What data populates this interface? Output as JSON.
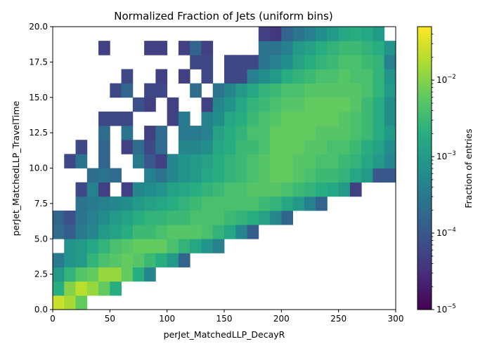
{
  "chart_data": {
    "type": "heatmap",
    "title": "Normalized Fraction of Jets (uniform bins)",
    "xlabel": "perJet_MatchedLLP_DecayR",
    "ylabel": "perJet_MatchedLLP_TravelTime",
    "xlim": [
      0,
      300
    ],
    "ylim": [
      0,
      20
    ],
    "x_bin_width": 10,
    "y_bin_width": 1,
    "x_ticks": [
      "0",
      "50",
      "100",
      "150",
      "200",
      "250",
      "300"
    ],
    "y_ticks": [
      "0.0",
      "2.5",
      "5.0",
      "7.5",
      "10.0",
      "12.5",
      "15.0",
      "17.5",
      "20.0"
    ],
    "colorbar": {
      "label": "Fraction of entries",
      "scale": "log",
      "range": [
        1e-05,
        0.05
      ],
      "ticks": [
        "10^-5",
        "10^-4",
        "10^-3",
        "10^-2"
      ],
      "colormap": "viridis"
    },
    "log10_rows": [
      [
        -1.6,
        -1.8,
        -2.2,
        null,
        null,
        null,
        null,
        null,
        null,
        null,
        null,
        null,
        null,
        null,
        null,
        null,
        null,
        null,
        null,
        null,
        null,
        null,
        null,
        null,
        null,
        null,
        null,
        null,
        null,
        null
      ],
      [
        -2.7,
        -2.0,
        -1.7,
        -1.9,
        -2.2,
        -2.7,
        null,
        null,
        null,
        null,
        null,
        null,
        null,
        null,
        null,
        null,
        null,
        null,
        null,
        null,
        null,
        null,
        null,
        null,
        null,
        null,
        null,
        null,
        null,
        null
      ],
      [
        -3.0,
        -2.6,
        -2.3,
        -2.2,
        -1.9,
        -1.9,
        -2.2,
        -2.7,
        -3.3,
        null,
        null,
        null,
        null,
        null,
        null,
        null,
        null,
        null,
        null,
        null,
        null,
        null,
        null,
        null,
        null,
        null,
        null,
        null,
        null,
        null
      ],
      [
        -3.5,
        -3.1,
        -3.0,
        -2.6,
        -2.4,
        -2.3,
        -2.2,
        -2.3,
        -2.5,
        -2.7,
        -3.0,
        -3.8,
        null,
        null,
        null,
        null,
        null,
        null,
        null,
        null,
        null,
        null,
        null,
        null,
        null,
        null,
        null,
        null,
        null,
        null
      ],
      [
        null,
        -3.1,
        -3.0,
        -2.8,
        -2.6,
        -2.4,
        -2.3,
        -2.2,
        -2.2,
        -2.2,
        -2.4,
        -2.6,
        -2.8,
        -3.1,
        -3.4,
        null,
        null,
        null,
        null,
        null,
        null,
        null,
        null,
        null,
        null,
        null,
        null,
        null,
        null,
        null
      ],
      [
        -3.7,
        -3.9,
        -3.5,
        -3.3,
        -3.0,
        -2.9,
        -2.7,
        -2.5,
        -2.5,
        -2.4,
        -2.3,
        -2.3,
        -2.3,
        -2.4,
        -2.6,
        -2.8,
        -3.3,
        -3.9,
        null,
        null,
        null,
        null,
        null,
        null,
        null,
        null,
        null,
        null,
        null,
        null
      ],
      [
        -3.8,
        -4.1,
        -3.6,
        -3.4,
        -3.2,
        -3.0,
        -2.9,
        -2.7,
        -2.6,
        -2.6,
        -2.5,
        -2.5,
        -2.4,
        -2.4,
        -2.4,
        -2.5,
        -2.6,
        -2.7,
        -2.9,
        -3.3,
        -3.8,
        null,
        null,
        null,
        null,
        null,
        null,
        null,
        null,
        null
      ],
      [
        null,
        null,
        -3.6,
        -3.5,
        -3.4,
        -3.3,
        -3.2,
        -3.0,
        -2.9,
        -2.8,
        -2.7,
        -2.6,
        -2.5,
        -2.4,
        -2.4,
        -2.4,
        -2.4,
        -2.4,
        -2.5,
        -2.6,
        -2.8,
        -3.0,
        -3.4,
        -3.8,
        null,
        null,
        null,
        null,
        null,
        null
      ],
      [
        null,
        null,
        -4.2,
        -3.4,
        -4.3,
        null,
        -4.3,
        -3.3,
        -3.2,
        -3.1,
        -2.9,
        -2.8,
        -2.7,
        -2.6,
        -2.5,
        -2.4,
        -2.4,
        -2.3,
        -2.3,
        -2.3,
        -2.4,
        -2.5,
        -2.6,
        -2.7,
        -2.8,
        -3.0,
        -4.3,
        null,
        null,
        null
      ],
      [
        null,
        null,
        null,
        -3.7,
        -3.6,
        -3.7,
        null,
        null,
        -3.4,
        -3.6,
        -3.3,
        -3.1,
        -3.0,
        -2.8,
        -2.7,
        -2.6,
        -2.5,
        -2.4,
        -2.3,
        -2.2,
        -2.2,
        -2.3,
        -2.4,
        -2.5,
        -2.5,
        -2.6,
        -2.8,
        -3.0,
        -4.0,
        -4.0
      ],
      [
        null,
        -4.2,
        -3.6,
        null,
        -3.8,
        null,
        null,
        -3.5,
        -4.0,
        -4.3,
        -3.3,
        -3.1,
        -3.0,
        -2.9,
        -2.7,
        -2.6,
        -2.5,
        -2.4,
        -2.3,
        -2.2,
        -2.2,
        -2.3,
        -2.3,
        -2.4,
        -2.4,
        -2.5,
        -2.6,
        -2.8,
        -3.0,
        -3.3
      ],
      [
        null,
        null,
        -4.2,
        null,
        -3.8,
        null,
        -4.3,
        -3.7,
        -4.2,
        -3.7,
        null,
        -3.3,
        -3.3,
        -3.2,
        -2.8,
        -2.7,
        -2.5,
        -2.5,
        -2.4,
        -2.2,
        -2.2,
        -2.2,
        -2.3,
        -2.3,
        -2.4,
        -2.4,
        -2.5,
        -2.7,
        -2.9,
        -3.2
      ],
      [
        null,
        null,
        null,
        null,
        -3.7,
        null,
        -3.6,
        null,
        -4.3,
        -3.7,
        null,
        -3.5,
        -3.5,
        -3.4,
        -2.9,
        -2.7,
        -2.6,
        -2.4,
        -2.4,
        -2.2,
        -2.2,
        -2.2,
        -2.2,
        -2.3,
        -2.3,
        -2.3,
        -2.4,
        -2.5,
        -2.7,
        -3.0
      ],
      [
        null,
        null,
        null,
        null,
        -4.2,
        -4.2,
        -4.2,
        null,
        null,
        null,
        -4.3,
        -3.5,
        null,
        -3.4,
        -3.2,
        -2.8,
        -2.7,
        -2.5,
        -2.4,
        -2.3,
        -2.2,
        -2.2,
        -2.2,
        -2.2,
        -2.2,
        -2.3,
        -2.4,
        -2.5,
        -2.7,
        -3.2
      ],
      [
        null,
        null,
        null,
        null,
        null,
        null,
        null,
        -4.1,
        -4.3,
        null,
        -4.3,
        null,
        null,
        -4.3,
        -3.3,
        -3.1,
        -2.8,
        -2.6,
        -2.5,
        -2.4,
        -2.3,
        -2.3,
        -2.2,
        -2.2,
        -2.2,
        -2.2,
        -2.3,
        -2.5,
        -2.7,
        -3.2
      ],
      [
        null,
        null,
        null,
        null,
        null,
        -4.2,
        -3.8,
        null,
        -4.2,
        -4.2,
        null,
        null,
        -3.7,
        null,
        -3.6,
        -3.3,
        -3.0,
        -2.8,
        -2.6,
        -2.5,
        -2.4,
        -2.4,
        -2.3,
        -2.3,
        -2.3,
        -2.3,
        -2.3,
        -2.4,
        -2.6,
        -3.0
      ],
      [
        null,
        null,
        null,
        null,
        null,
        null,
        -4.2,
        null,
        null,
        -4.3,
        null,
        -4.3,
        null,
        -4.2,
        null,
        -4.2,
        -4.2,
        -3.4,
        -3.2,
        -3.0,
        -2.7,
        -2.6,
        -2.5,
        -2.4,
        -2.4,
        -2.3,
        -2.4,
        -2.4,
        -2.6,
        -3.1
      ],
      [
        null,
        null,
        null,
        null,
        null,
        null,
        null,
        null,
        null,
        null,
        null,
        null,
        -4.2,
        -4.2,
        null,
        -4.2,
        -4.2,
        -4.2,
        -3.6,
        -3.4,
        -3.2,
        -2.9,
        -2.7,
        -2.6,
        -2.5,
        -2.4,
        -2.4,
        -2.5,
        -2.6,
        -3.4
      ],
      [
        null,
        null,
        null,
        null,
        -4.3,
        null,
        null,
        null,
        -4.3,
        -4.3,
        null,
        -4.3,
        -3.8,
        -4.3,
        null,
        null,
        null,
        null,
        -3.6,
        -3.6,
        -3.4,
        -3.0,
        -2.9,
        -2.7,
        -2.6,
        -2.5,
        -2.5,
        -2.6,
        -2.7,
        -3.1
      ],
      [
        null,
        null,
        null,
        null,
        null,
        null,
        null,
        null,
        null,
        null,
        null,
        null,
        null,
        null,
        null,
        null,
        null,
        null,
        -4.3,
        -4.4,
        -3.8,
        -3.6,
        -3.4,
        -3.2,
        -3.0,
        -2.8,
        -2.7,
        -2.8,
        -3.0,
        null
      ]
    ]
  }
}
